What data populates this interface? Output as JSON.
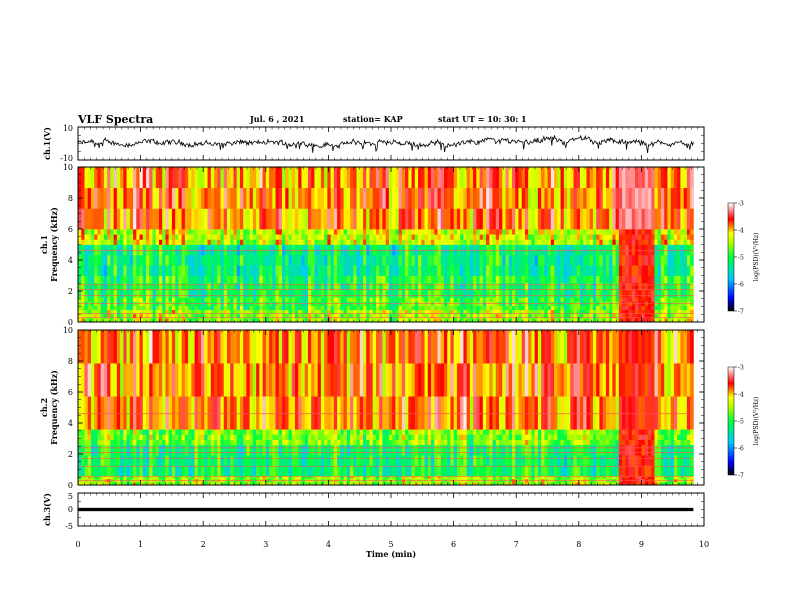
{
  "header": {
    "title": "VLF Spectra",
    "date": "Jul. 6 , 2021",
    "station": "station= KAP",
    "start_ut": "start UT = 10: 30: 1"
  },
  "chart_data": [
    {
      "type": "line",
      "panel": "ch1-voltage",
      "ylabel": "ch.1(V)",
      "ylim": [
        -10,
        10
      ],
      "yticks": [
        "10",
        "-10"
      ],
      "x_range": [
        0,
        9.83
      ],
      "series": [
        {
          "color": "#000000",
          "level_range": [
            -5,
            5
          ]
        }
      ]
    },
    {
      "type": "heatmap",
      "panel": "ch1-spectrogram",
      "ylabel": "ch.1",
      "ylabel2": "Frequency (kHz)",
      "ylim": [
        0,
        10
      ],
      "yticks": [
        "0",
        "2",
        "4",
        "6",
        "8",
        "10"
      ],
      "colorbar": {
        "label": "log(PSD)(V²/Hz)",
        "range": [
          -7,
          -3
        ],
        "ticks": [
          "-3",
          "-4",
          "-5",
          "-6",
          "-7"
        ]
      },
      "bands_khz": [
        {
          "from": 0,
          "to": 0.8,
          "log_psd": -4.5
        },
        {
          "from": 0.8,
          "to": 1.6,
          "log_psd": -4.8
        },
        {
          "from": 1.6,
          "to": 3.0,
          "log_psd": -5.0
        },
        {
          "from": 3.0,
          "to": 5.0,
          "log_psd": -5.2
        },
        {
          "from": 5.0,
          "to": 6.0,
          "log_psd": -4.3
        },
        {
          "from": 6.0,
          "to": 10.0,
          "log_psd": -3.8
        }
      ],
      "burst_min": [
        8.63,
        9.22
      ]
    },
    {
      "type": "heatmap",
      "panel": "ch2-spectrogram",
      "ylabel": "ch.2",
      "ylabel2": "Frequency (kHz)",
      "ylim": [
        0,
        10
      ],
      "yticks": [
        "0",
        "2",
        "4",
        "6",
        "8",
        "10"
      ],
      "colorbar": {
        "label": "log(PSD)(V²/Hz)",
        "range": [
          -7,
          -3
        ],
        "ticks": [
          "-3",
          "-4",
          "-5",
          "-6",
          "-7"
        ]
      },
      "bands_khz": [
        {
          "from": 0,
          "to": 0.6,
          "log_psd": -4.5
        },
        {
          "from": 0.6,
          "to": 2.6,
          "log_psd": -5.1
        },
        {
          "from": 2.6,
          "to": 3.6,
          "log_psd": -4.6
        },
        {
          "from": 3.6,
          "to": 10.0,
          "log_psd": -3.8
        }
      ],
      "burst_min": [
        8.63,
        9.22
      ]
    },
    {
      "type": "line",
      "panel": "ch3-voltage",
      "ylabel": "ch.3(V)",
      "ylim": [
        -5,
        5
      ],
      "yticks": [
        "5",
        "0",
        "-5"
      ],
      "x_range": [
        0,
        9.83
      ],
      "series": [
        {
          "color": "#000000",
          "level_range": [
            -0.5,
            0.5
          ]
        }
      ]
    }
  ],
  "x_axis": {
    "label": "Time (min)",
    "range": [
      0,
      10
    ],
    "ticks": [
      "0",
      "1",
      "2",
      "3",
      "4",
      "5",
      "6",
      "7",
      "8",
      "9",
      "10"
    ]
  }
}
